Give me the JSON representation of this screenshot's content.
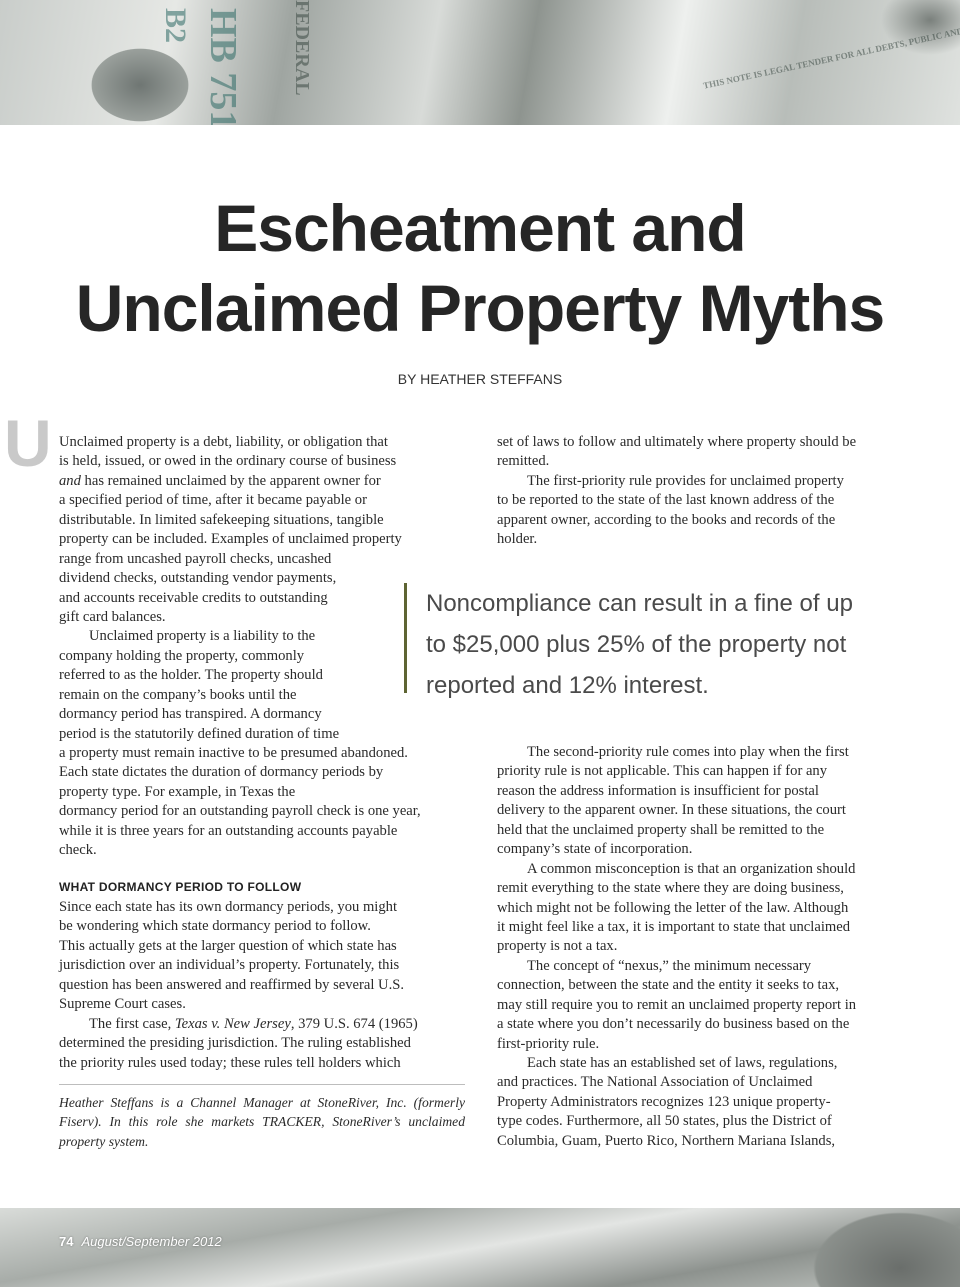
{
  "header_image": {
    "description_text": [
      "HB 751",
      "B2",
      "FEDERAL",
      "THIS NOTE IS LEGAL TENDER FOR ALL DEBTS, PUBLIC AND PRIVATE"
    ]
  },
  "title": [
    "Escheatment and",
    "Unclaimed Property Myths"
  ],
  "byline": "BY HEATHER STEFFANS",
  "drop_cap": "U",
  "left_column": {
    "block1": [
      "Unclaimed property is a debt, liability, or obligation that",
      "is held, issued, or owed in the ordinary course of business",
      [
        [
          "and",
          true
        ],
        [
          " has remained unclaimed by the apparent owner for",
          false
        ]
      ],
      "a specified period of time, after it became payable or",
      "distributable. In limited safekeeping situations, tangible",
      "property can be included. Examples of unclaimed property",
      "range from uncashed payroll checks, uncashed",
      "dividend checks, outstanding vendor payments,",
      "and accounts receivable credits to outstanding",
      "gift card balances.",
      ">Unclaimed property is a liability to the",
      "company holding the property, commonly",
      "referred to as the holder. The property should",
      "remain on the company’s books until the",
      "dormancy period has transpired. A dormancy",
      "period is the statutorily defined duration of time",
      "a property must remain inactive to be presumed abandoned.",
      "Each state dictates the duration of dormancy periods by",
      "property type. For example, in Texas the",
      "dormancy period for an outstanding payroll check is one year,",
      "while it is three years for an outstanding accounts payable",
      "check."
    ],
    "heading": "WHAT DORMANCY PERIOD TO FOLLOW",
    "block2": [
      "Since each state has its own dormancy periods, you might",
      "be wondering which state dormancy period to follow.",
      "This actually gets at the larger question of which state has",
      "jurisdiction over an individual’s property. Fortunately, this",
      "question has been answered and reaffirmed by several U.S.",
      "Supreme Court cases.",
      [
        [
          ">The first case, ",
          false
        ],
        [
          "Texas v. New Jersey",
          true
        ],
        [
          ", 379 U.S. 674 (1965)",
          false
        ]
      ],
      "determined the presiding jurisdiction. The ruling established",
      "the priority rules used today; these rules tell holders which"
    ]
  },
  "right_column": {
    "block1": [
      "set of laws to follow and ultimately where property should be",
      "remitted.",
      ">The first-priority rule provides for unclaimed property",
      "to be reported to the state of the last known address of the",
      "apparent owner, according to the books and records of the",
      "holder."
    ],
    "block2": [
      ">The second-priority rule comes into play when the first",
      "priority rule is not applicable. This can happen if for any",
      "reason the address information is insufficient for postal",
      "delivery to the apparent owner. In these situations, the court",
      "held that the unclaimed property shall be remitted to the",
      "company’s state of incorporation.",
      ">A common misconception is that an organization should",
      "remit everything to the state where they are doing business,",
      "which might not be following the letter of the law. Although",
      "it might feel like a tax, it is important to state that unclaimed",
      "property is not a tax.",
      ">The concept of “nexus,” the minimum necessary",
      "connection, between the state and the entity it seeks to tax,",
      "may still require you to remit an unclaimed property report in",
      "a state where you don’t necessarily do business based on the",
      "first-priority rule.",
      ">Each state has an established set of laws, regulations,",
      "and practices. The National Association of Unclaimed",
      "Property Administrators recognizes 123 unique property-",
      "type codes. Furthermore, all 50 states, plus the District of",
      "Columbia, Guam, Puerto Rico, Northern Mariana Islands,"
    ]
  },
  "pull_quote": [
    "Noncompliance can result in a fine of up",
    "to $25,000 plus 25% of the property not",
    "reported and 12% interest."
  ],
  "bio": "Heather Steffans is a Channel Manager at StoneRiver, Inc. (formerly Fiserv). In this role she markets TRACKER, StoneRiver’s unclaimed property system.",
  "footer": {
    "page_number": "74",
    "issue": "August/September 2012"
  },
  "colors": {
    "pull_quote_rule": "#5e6433",
    "drop_cap": "#c9c9c9"
  }
}
